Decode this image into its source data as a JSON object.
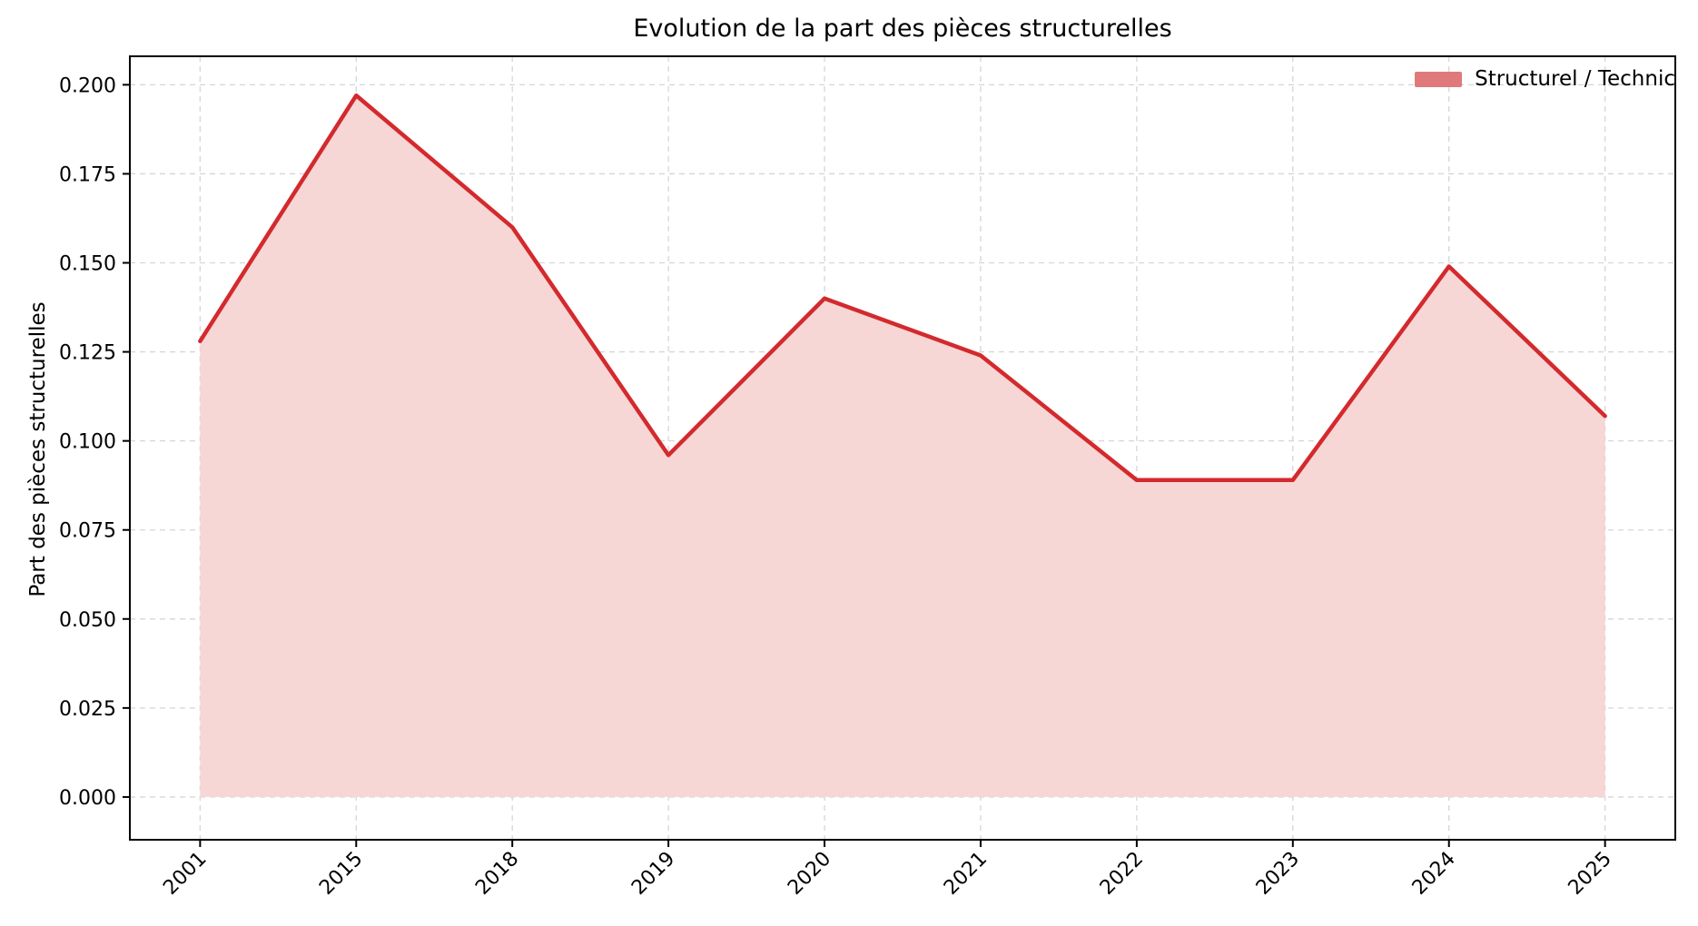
{
  "window": {
    "title": "Evolution de la part des pièces structurelles"
  },
  "colors": {
    "line": "#d32a2d",
    "fill": "#f7d6d6",
    "legend_swatch": "#e0797b",
    "grid": "#d6d6d6",
    "axis": "#000000",
    "text": "#000000",
    "background": "#ffffff"
  },
  "legend": {
    "items": [
      {
        "label": "Structurel / Technic",
        "swatch_color": "#e0797b"
      }
    ],
    "position": "upper right",
    "frame": false
  },
  "chart_data": {
    "type": "area",
    "title": "Evolution de la part des pièces structurelles",
    "xlabel": "",
    "ylabel": "Part des pièces structurelles",
    "categories": [
      "2001",
      "2015",
      "2018",
      "2019",
      "2020",
      "2021",
      "2022",
      "2023",
      "2024",
      "2025"
    ],
    "series": [
      {
        "name": "Structurel / Technic",
        "values": [
          0.128,
          0.197,
          0.16,
          0.096,
          0.14,
          0.124,
          0.089,
          0.089,
          0.149,
          0.107
        ]
      }
    ],
    "yticks": [
      0.0,
      0.025,
      0.05,
      0.075,
      0.1,
      0.125,
      0.15,
      0.175,
      0.2
    ],
    "ytick_labels": [
      "0.000",
      "0.025",
      "0.050",
      "0.075",
      "0.100",
      "0.125",
      "0.150",
      "0.175",
      "0.200"
    ],
    "ylim": [
      -0.012,
      0.208
    ],
    "xlim": [
      -0.45,
      9.45
    ],
    "grid": true,
    "grid_style": "dashed",
    "x_tick_rotation": 45,
    "baseline": 0.0,
    "legend_position": "upper right"
  }
}
